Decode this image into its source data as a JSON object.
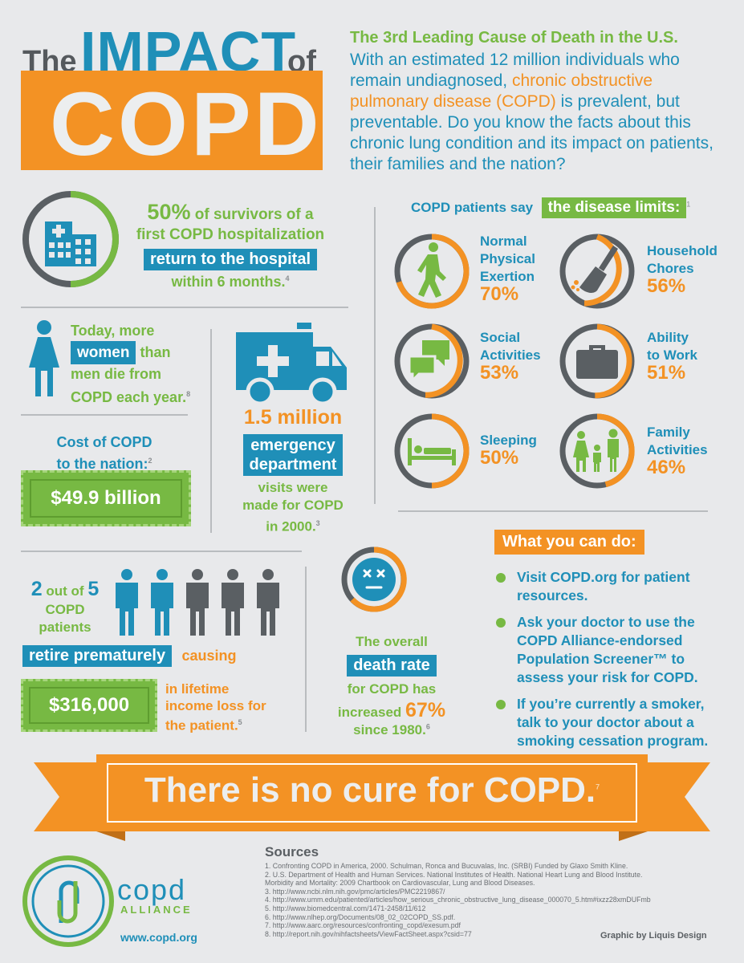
{
  "title": {
    "the": "The",
    "impact": "IMPACT",
    "of": "of",
    "copd": "COPD"
  },
  "intro": {
    "heading": "The 3rd Leading Cause of Death in the U.S.",
    "text_a": "With an estimated 12 million individuals who remain undiagnosed,",
    "text_highlight": "chronic obstructive pulmonary disease (COPD)",
    "text_b": "is prevalent, but preventable. Do you know the facts about this chronic lung condition and its impact on patients, their families and the nation?"
  },
  "hospital": {
    "pct": "50%",
    "line1": "of survivors of a",
    "line2": "first COPD hospitalization",
    "box": "return to the hospital",
    "line3": "within 6 months.",
    "ref": "4"
  },
  "women": {
    "line1": "Today, more",
    "box": "women",
    "than": "than",
    "line2": "men die from",
    "line3": "COPD each year.",
    "ref": "8"
  },
  "emergency": {
    "count": "1.5 million",
    "box1": "emergency",
    "box2": "department",
    "line1": "visits were",
    "line2": "made for COPD",
    "line3": "in 2000.",
    "ref": "3"
  },
  "cost": {
    "line1": "Cost of COPD",
    "line2": "to the nation:",
    "ref": "2",
    "amount": "$49.9 billion"
  },
  "retire": {
    "two": "2",
    "outof": "out of",
    "five": "5",
    "line1": "COPD",
    "line2": "patients",
    "box": "retire prematurely",
    "causing": "causing",
    "amount": "$316,000",
    "line3": "in lifetime",
    "line4": "income loss for",
    "line5": "the patient.",
    "ref": "5"
  },
  "death": {
    "line1": "The overall",
    "box": "death rate",
    "line2": "for COPD has",
    "line3": "increased",
    "pct": "67%",
    "line4": "since 1980.",
    "ref": "6"
  },
  "limits": {
    "intro": "COPD patients say",
    "box": "the disease limits:",
    "ref": "1",
    "items": [
      {
        "label1": "Normal",
        "label2": "Physical",
        "label3": "Exertion",
        "pct": "70%",
        "pct_value": 70
      },
      {
        "label1": "Household",
        "label2": "Chores",
        "label3": "",
        "pct": "56%",
        "pct_value": 56
      },
      {
        "label1": "Social",
        "label2": "Activities",
        "label3": "",
        "pct": "53%",
        "pct_value": 53
      },
      {
        "label1": "Ability",
        "label2": "to Work",
        "label3": "",
        "pct": "51%",
        "pct_value": 51
      },
      {
        "label1": "Sleeping",
        "label2": "",
        "label3": "",
        "pct": "50%",
        "pct_value": 50
      },
      {
        "label1": "Family",
        "label2": "Activities",
        "label3": "",
        "pct": "46%",
        "pct_value": 46
      }
    ]
  },
  "todo": {
    "heading": "What you can do:",
    "items": [
      "Visit COPD.org for patient resources.",
      "Ask your doctor to use the COPD Alliance-endorsed Population Screener™ to assess your risk for COPD.",
      "If you’re currently a smoker, talk to your doctor about a smoking cessation program."
    ]
  },
  "banner": {
    "text": "There is no cure for COPD.",
    "ref": "7"
  },
  "logo": {
    "copd": "copd",
    "alliance": "ALLIANCE",
    "url": "www.copd.org"
  },
  "sources": {
    "heading": "Sources",
    "items": [
      "1. Confronting COPD in America, 2000. Schulman, Ronca and Bucuvalas, Inc. (SRBI) Funded by Glaxo Smith Kline.",
      "2. U.S. Department of Health and Human Services. National Institutes of Health. National Heart Lung and Blood Institute.",
      "Morbidity and Mortality: 2009 Chartbook on Cardiovascular, Lung and Blood Diseases.",
      "3. http://www.ncbi.nlm.nih.gov/pmc/articles/PMC2219867/",
      "4. http://www.umm.edu/patiented/articles/how_serious_chronic_obstructive_lung_disease_000070_5.htm#ixzz28xmDUFmb",
      "5. http://www.biomedcentral.com/1471-2458/11/612",
      "6. http://www.nlhep.org/Documents/08_02_02COPD_SS.pdf.",
      "7. http://www.aarc.org/resources/confronting_copd/exesum.pdf",
      "8. http://report.nih.gov/nihfactsheets/ViewFactSheet.aspx?csid=77"
    ]
  },
  "credit": "Graphic by Liquis Design",
  "colors": {
    "teal": "#1f8fb8",
    "green": "#77b943",
    "orange": "#f39224",
    "gray": "#5a5f63",
    "background": "#e8e9eb"
  }
}
